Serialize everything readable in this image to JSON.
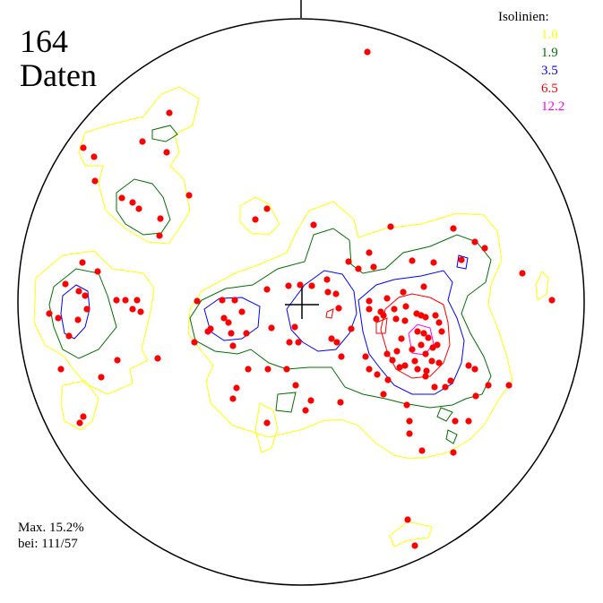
{
  "header": {
    "count": "164",
    "count_label": "Daten"
  },
  "legend": {
    "title": "Isolinien:",
    "levels": [
      {
        "label": "1.0",
        "color": "#ffff00"
      },
      {
        "label": "1.9",
        "color": "#007000"
      },
      {
        "label": "3.5",
        "color": "#0000ff"
      },
      {
        "label": "6.5",
        "color": "#ff0000"
      },
      {
        "label": "12.2",
        "color": "#ff00ff"
      }
    ]
  },
  "footer": {
    "max_line": "Max.  15.2%",
    "at_line": "bei: 111/57"
  },
  "colors": {
    "point": "#ff0000",
    "frame": "#000000"
  }
}
